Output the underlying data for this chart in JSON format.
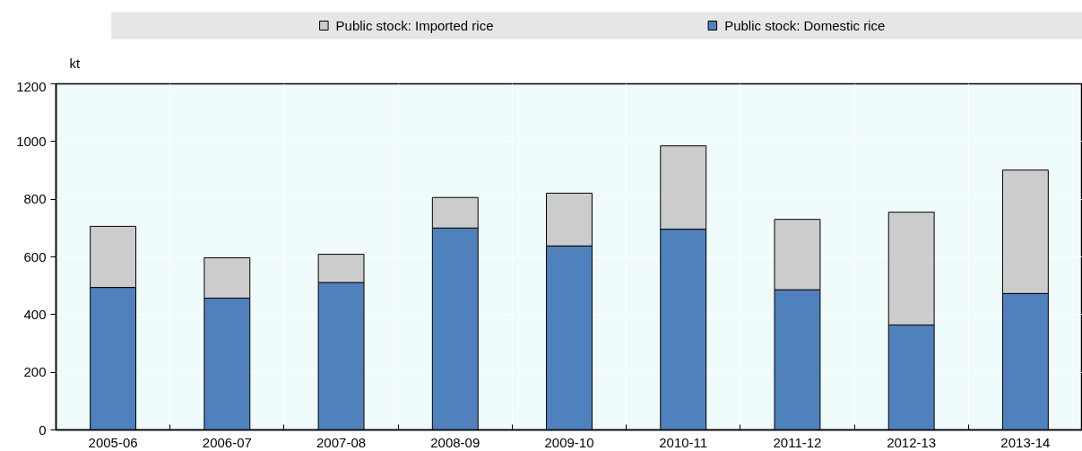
{
  "chart_data": {
    "type": "bar",
    "stacked": true,
    "ylabel": "kt",
    "categories": [
      "2005-06",
      "2006-07",
      "2007-08",
      "2008-09",
      "2009-10",
      "2010-11",
      "2011-12",
      "2012-13",
      "2013-14"
    ],
    "series": [
      {
        "name": "Public stock: Domestic rice",
        "color": "#4f81bd",
        "values": [
          494,
          457,
          511,
          700,
          638,
          696,
          486,
          364,
          473
        ]
      },
      {
        "name": "Public stock: Imported rice",
        "color": "#cccccc",
        "values": [
          212,
          140,
          98,
          106,
          183,
          289,
          244,
          391,
          428
        ]
      }
    ],
    "ylim": [
      0,
      1200
    ],
    "yticks": [
      0,
      200,
      400,
      600,
      800,
      1000,
      1200
    ],
    "grid": true,
    "legend": "top"
  }
}
